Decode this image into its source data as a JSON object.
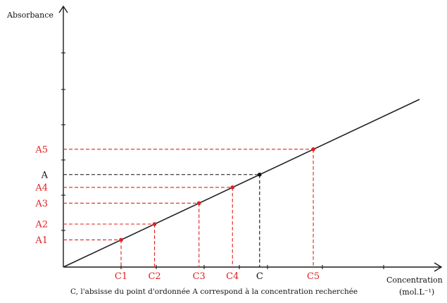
{
  "y_axis_label": "Absorbance",
  "x_axis_label": "Concentration",
  "x_axis_unit": "(mol.L⁻¹)",
  "caption": "C, l'absisse du point d'ordonnée A correspond à la concentration recherchée",
  "colors": {
    "standards": "#e02020",
    "sample": "#111111",
    "line": "#222222"
  },
  "standards": [
    {
      "c_label": "C1",
      "a_label": "A1",
      "c": 1.0,
      "a": 1.0
    },
    {
      "c_label": "C2",
      "a_label": "A2",
      "c": 1.58,
      "a": 1.58
    },
    {
      "c_label": "C3",
      "a_label": "A3",
      "c": 2.35,
      "a": 2.35
    },
    {
      "c_label": "C4",
      "a_label": "A4",
      "c": 2.93,
      "a": 2.93
    },
    {
      "c_label": "C5",
      "a_label": "A5",
      "c": 4.33,
      "a": 4.33
    }
  ],
  "sample": {
    "c_label": "C",
    "a_label": "A",
    "c": 3.4,
    "a": 3.4
  }
}
